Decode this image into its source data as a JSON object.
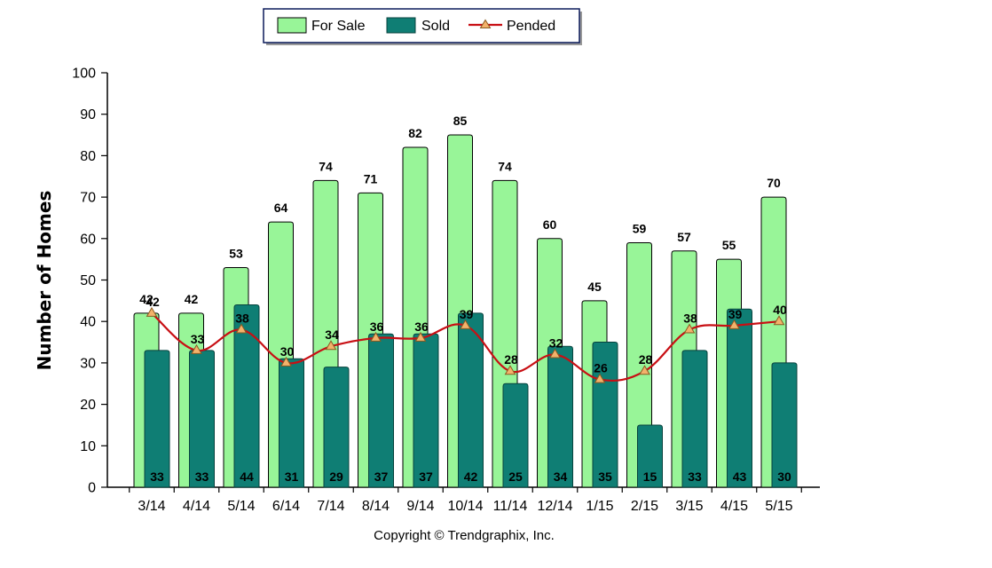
{
  "colors": {
    "for_sale": "#98f598",
    "sold": "#0f7e74",
    "pended": "#c80f14",
    "marker": "#f3b26b"
  },
  "legend": {
    "for_sale": "For Sale",
    "sold": "Sold",
    "pended": "Pended"
  },
  "copyright": "Copyright © Trendgraphix, Inc.",
  "chart_data": {
    "type": "bar",
    "ylabel": "Number of Homes",
    "xlabel": "",
    "ylim": [
      0,
      100
    ],
    "yticks": [
      0,
      10,
      20,
      30,
      40,
      50,
      60,
      70,
      80,
      90,
      100
    ],
    "legend_position": "top-center",
    "grid": false,
    "categories": [
      "3/14",
      "4/14",
      "5/14",
      "6/14",
      "7/14",
      "8/14",
      "9/14",
      "10/14",
      "11/14",
      "12/14",
      "1/15",
      "2/15",
      "3/15",
      "4/15",
      "5/15"
    ],
    "series": [
      {
        "name": "For Sale",
        "type": "bar",
        "values": [
          42,
          42,
          53,
          64,
          74,
          71,
          82,
          85,
          74,
          60,
          45,
          59,
          57,
          55,
          70
        ]
      },
      {
        "name": "Sold",
        "type": "bar",
        "values": [
          33,
          33,
          44,
          31,
          29,
          37,
          37,
          42,
          25,
          34,
          35,
          15,
          33,
          43,
          30
        ]
      },
      {
        "name": "Pended",
        "type": "line",
        "values": [
          42,
          33,
          38,
          30,
          34,
          36,
          36,
          39,
          28,
          32,
          26,
          28,
          38,
          39,
          40
        ]
      }
    ]
  }
}
